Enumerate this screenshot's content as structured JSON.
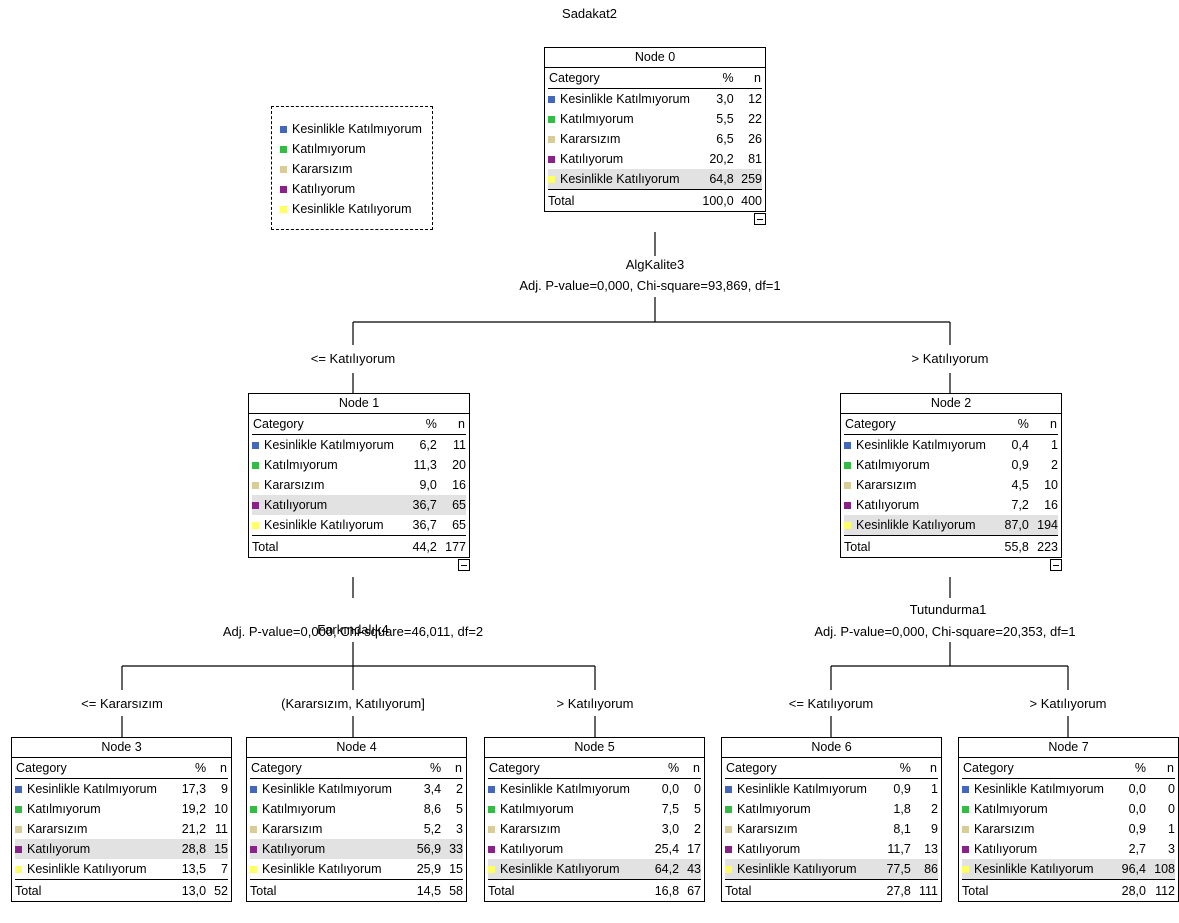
{
  "title": "Sadakat2",
  "colors": {
    "Kesinlikle Katılmıyorum": "#4466bb",
    "Katılmıyorum": "#33bb44",
    "Kararsızım": "#d8cc99",
    "Katılıyorum": "#882288",
    "Kesinlikle Katılıyorum": "#ffff66"
  },
  "legend": [
    "Kesinlikle Katılmıyorum",
    "Katılmıyorum",
    "Kararsızım",
    "Katılıyorum",
    "Kesinlikle Katılıyorum"
  ],
  "headers": {
    "category": "Category",
    "pct": "%",
    "n": "n",
    "total": "Total"
  },
  "splits": [
    {
      "variable": "AlgKalite3",
      "stats": "Adj. P-value=0,000, Chi-square=93,869, df=1"
    },
    {
      "variable": "Farkındalık4",
      "stats": "Adj. P-value=0,000, Chi-square=46,011, df=2"
    },
    {
      "variable": "Tutundurma1",
      "stats": "Adj. P-value=0,000, Chi-square=20,353, df=1"
    }
  ],
  "branches": [
    "<= Katılıyorum",
    "> Katılıyorum",
    "<= Kararsızım",
    "(Kararsızım, Katılıyorum]",
    "> Katılıyorum",
    "<= Katılıyorum",
    "> Katılıyorum"
  ],
  "nodes": [
    {
      "title": "Node 0",
      "highlight": 4,
      "rows": [
        [
          "Kesinlikle Katılmıyorum",
          "3,0",
          "12"
        ],
        [
          "Katılmıyorum",
          "5,5",
          "22"
        ],
        [
          "Kararsızım",
          "6,5",
          "26"
        ],
        [
          "Katılıyorum",
          "20,2",
          "81"
        ],
        [
          "Kesinlikle Katılıyorum",
          "64,8",
          "259"
        ]
      ],
      "total": [
        "100,0",
        "400"
      ]
    },
    {
      "title": "Node 1",
      "highlight": 3,
      "rows": [
        [
          "Kesinlikle Katılmıyorum",
          "6,2",
          "11"
        ],
        [
          "Katılmıyorum",
          "11,3",
          "20"
        ],
        [
          "Kararsızım",
          "9,0",
          "16"
        ],
        [
          "Katılıyorum",
          "36,7",
          "65"
        ],
        [
          "Kesinlikle Katılıyorum",
          "36,7",
          "65"
        ]
      ],
      "total": [
        "44,2",
        "177"
      ]
    },
    {
      "title": "Node 2",
      "highlight": 4,
      "rows": [
        [
          "Kesinlikle Katılmıyorum",
          "0,4",
          "1"
        ],
        [
          "Katılmıyorum",
          "0,9",
          "2"
        ],
        [
          "Kararsızım",
          "4,5",
          "10"
        ],
        [
          "Katılıyorum",
          "7,2",
          "16"
        ],
        [
          "Kesinlikle Katılıyorum",
          "87,0",
          "194"
        ]
      ],
      "total": [
        "55,8",
        "223"
      ]
    },
    {
      "title": "Node 3",
      "highlight": 3,
      "rows": [
        [
          "Kesinlikle Katılmıyorum",
          "17,3",
          "9"
        ],
        [
          "Katılmıyorum",
          "19,2",
          "10"
        ],
        [
          "Kararsızım",
          "21,2",
          "11"
        ],
        [
          "Katılıyorum",
          "28,8",
          "15"
        ],
        [
          "Kesinlikle Katılıyorum",
          "13,5",
          "7"
        ]
      ],
      "total": [
        "13,0",
        "52"
      ]
    },
    {
      "title": "Node 4",
      "highlight": 3,
      "rows": [
        [
          "Kesinlikle Katılmıyorum",
          "3,4",
          "2"
        ],
        [
          "Katılmıyorum",
          "8,6",
          "5"
        ],
        [
          "Kararsızım",
          "5,2",
          "3"
        ],
        [
          "Katılıyorum",
          "56,9",
          "33"
        ],
        [
          "Kesinlikle Katılıyorum",
          "25,9",
          "15"
        ]
      ],
      "total": [
        "14,5",
        "58"
      ]
    },
    {
      "title": "Node 5",
      "highlight": 4,
      "rows": [
        [
          "Kesinlikle Katılmıyorum",
          "0,0",
          "0"
        ],
        [
          "Katılmıyorum",
          "7,5",
          "5"
        ],
        [
          "Kararsızım",
          "3,0",
          "2"
        ],
        [
          "Katılıyorum",
          "25,4",
          "17"
        ],
        [
          "Kesinlikle Katılıyorum",
          "64,2",
          "43"
        ]
      ],
      "total": [
        "16,8",
        "67"
      ]
    },
    {
      "title": "Node 6",
      "highlight": 4,
      "rows": [
        [
          "Kesinlikle Katılmıyorum",
          "0,9",
          "1"
        ],
        [
          "Katılmıyorum",
          "1,8",
          "2"
        ],
        [
          "Kararsızım",
          "8,1",
          "9"
        ],
        [
          "Katılıyorum",
          "11,7",
          "13"
        ],
        [
          "Kesinlikle Katılıyorum",
          "77,5",
          "86"
        ]
      ],
      "total": [
        "27,8",
        "111"
      ]
    },
    {
      "title": "Node 7",
      "highlight": 4,
      "rows": [
        [
          "Kesinlikle Katılmıyorum",
          "0,0",
          "0"
        ],
        [
          "Katılmıyorum",
          "0,0",
          "0"
        ],
        [
          "Kararsızım",
          "0,9",
          "1"
        ],
        [
          "Katılıyorum",
          "2,7",
          "3"
        ],
        [
          "Kesinlikle Katılıyorum",
          "96,4",
          "108"
        ]
      ],
      "total": [
        "28,0",
        "112"
      ]
    }
  ]
}
